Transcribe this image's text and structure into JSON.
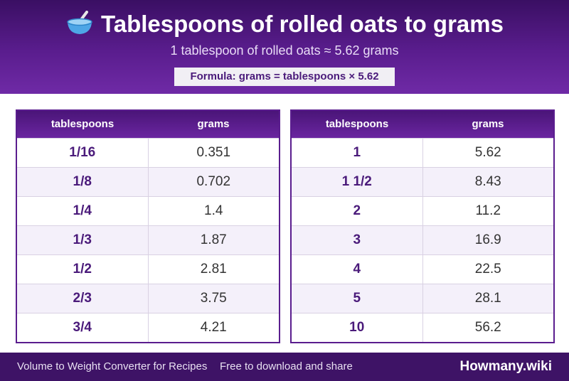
{
  "header": {
    "title": "Tablespoons of rolled oats to grams",
    "subtitle": "1 tablespoon of rolled oats ≈ 5.62 grams",
    "formula": "Formula: grams = tablespoons × 5.62",
    "icon": "bowl-with-spoon-icon"
  },
  "table_left": {
    "col_tbsp": "tablespoons",
    "col_grams": "grams",
    "rows": [
      {
        "tbsp": "1/16",
        "grams": "0.351"
      },
      {
        "tbsp": "1/8",
        "grams": "0.702"
      },
      {
        "tbsp": "1/4",
        "grams": "1.4"
      },
      {
        "tbsp": "1/3",
        "grams": "1.87"
      },
      {
        "tbsp": "1/2",
        "grams": "2.81"
      },
      {
        "tbsp": "2/3",
        "grams": "3.75"
      },
      {
        "tbsp": "3/4",
        "grams": "4.21"
      }
    ]
  },
  "table_right": {
    "col_tbsp": "tablespoons",
    "col_grams": "grams",
    "rows": [
      {
        "tbsp": "1",
        "grams": "5.62"
      },
      {
        "tbsp": "1 1/2",
        "grams": "8.43"
      },
      {
        "tbsp": "2",
        "grams": "11.2"
      },
      {
        "tbsp": "3",
        "grams": "16.9"
      },
      {
        "tbsp": "4",
        "grams": "22.5"
      },
      {
        "tbsp": "5",
        "grams": "28.1"
      },
      {
        "tbsp": "10",
        "grams": "56.2"
      }
    ]
  },
  "footer": {
    "left_text": "Volume to Weight Converter for Recipes",
    "middle_text": "Free to download and share",
    "brand": "Howmany.wiki"
  },
  "colors": {
    "header_dark": "#3a0f63",
    "header_light": "#6f2aa6",
    "accent": "#4a1a7a",
    "row_alt": "#f4f0fa",
    "footer": "#3e1366"
  }
}
